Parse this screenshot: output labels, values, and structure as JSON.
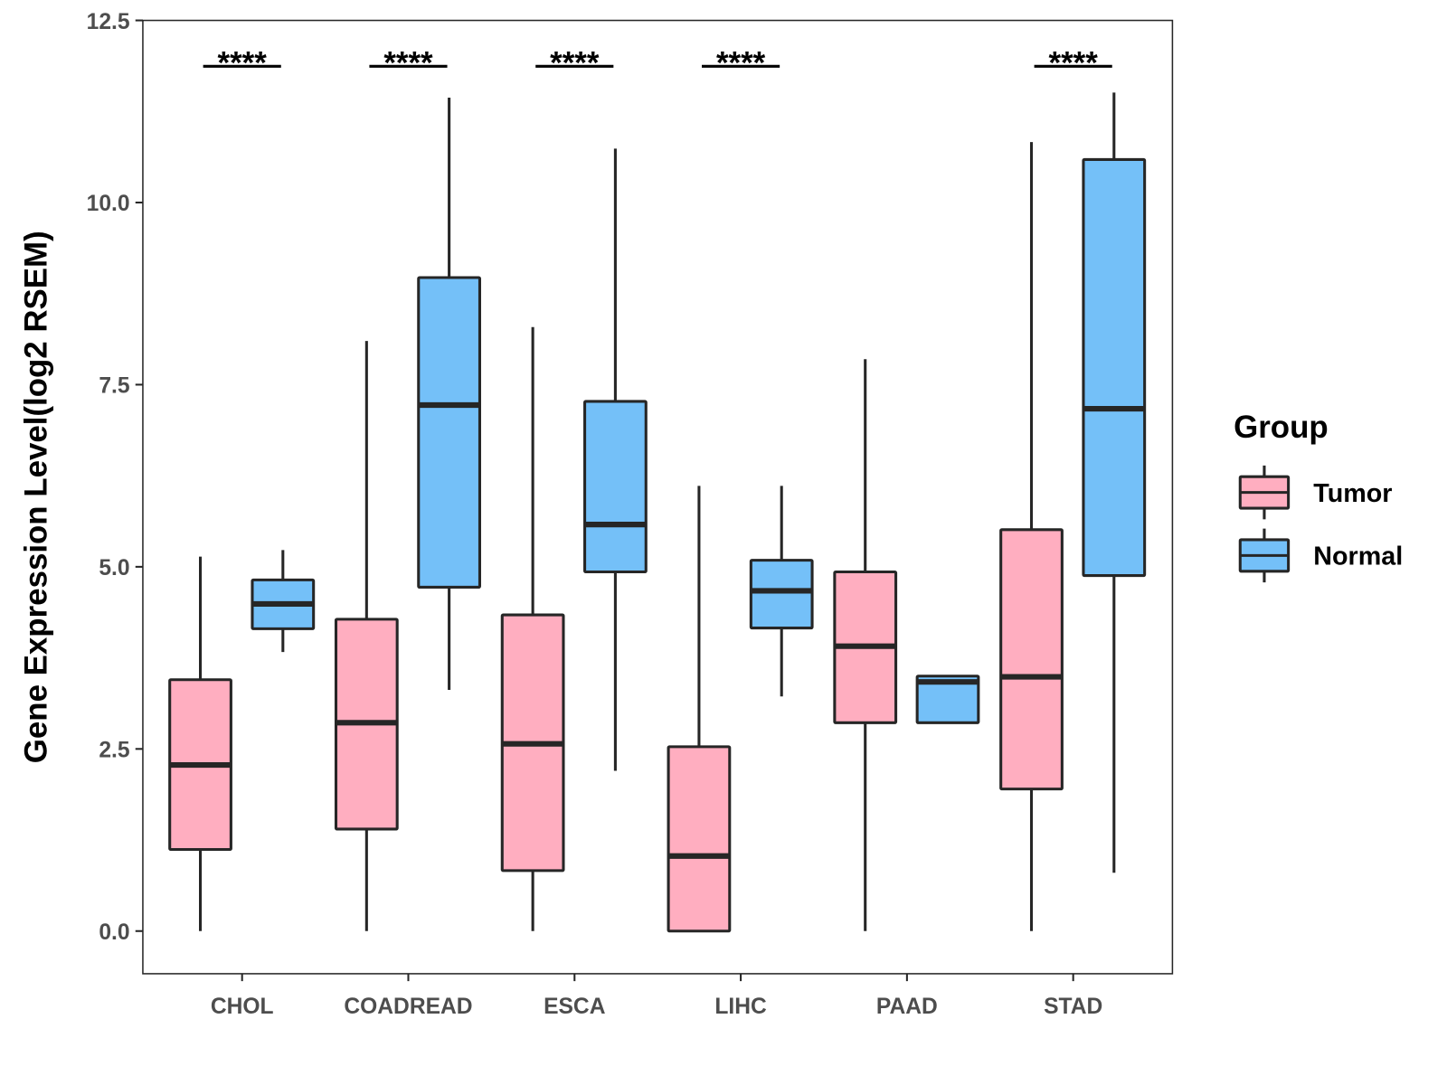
{
  "chart_data": {
    "type": "boxplot",
    "title": "",
    "xlabel": "",
    "ylabel": "Gene Expression Level(log2 RSEM)",
    "ylim": [
      -0.6,
      12.5
    ],
    "yticks": [
      "0.0",
      "2.5",
      "5.0",
      "7.5",
      "10.0",
      "12.5"
    ],
    "ytick_values": [
      0,
      2.5,
      5,
      7.5,
      10,
      12.5
    ],
    "grid": false,
    "categories": [
      "CHOL",
      "COADREAD",
      "ESCA",
      "LIHC",
      "PAAD",
      "STAD"
    ],
    "legend": {
      "title": "Group",
      "position": "right",
      "entries": [
        "Tumor",
        "Normal"
      ]
    },
    "colors": {
      "Tumor": "#FFAEC0",
      "Normal": "#74C0F8",
      "outline": "#262626"
    },
    "series": [
      {
        "name": "Tumor",
        "boxes": [
          {
            "min": 0,
            "q1": 1.12,
            "median": 2.28,
            "q3": 3.45,
            "max": 5.14
          },
          {
            "min": 0,
            "q1": 1.4,
            "median": 2.86,
            "q3": 4.28,
            "max": 8.1
          },
          {
            "min": 0,
            "q1": 0.83,
            "median": 2.57,
            "q3": 4.34,
            "max": 8.29
          },
          {
            "min": 0,
            "q1": 0.0,
            "median": 1.03,
            "q3": 2.53,
            "max": 6.11
          },
          {
            "min": 0,
            "q1": 2.86,
            "median": 3.91,
            "q3": 4.93,
            "max": 7.85
          },
          {
            "min": 0,
            "q1": 1.95,
            "median": 3.49,
            "q3": 5.51,
            "max": 10.83
          }
        ]
      },
      {
        "name": "Normal",
        "boxes": [
          {
            "min": 3.83,
            "q1": 4.15,
            "median": 4.49,
            "q3": 4.82,
            "max": 5.23
          },
          {
            "min": 3.31,
            "q1": 4.72,
            "median": 7.22,
            "q3": 8.97,
            "max": 11.44
          },
          {
            "min": 2.2,
            "q1": 4.93,
            "median": 5.58,
            "q3": 7.27,
            "max": 10.74
          },
          {
            "min": 3.22,
            "q1": 4.16,
            "median": 4.67,
            "q3": 5.09,
            "max": 6.11
          },
          {
            "min": 2.86,
            "q1": 2.86,
            "median": 3.42,
            "q3": 3.5,
            "max": 3.5
          },
          {
            "min": 0.8,
            "q1": 4.88,
            "median": 7.17,
            "q3": 10.59,
            "max": 11.51
          }
        ]
      }
    ],
    "annotations": [
      {
        "category": "CHOL",
        "label": "****"
      },
      {
        "category": "COADREAD",
        "label": "****"
      },
      {
        "category": "ESCA",
        "label": "****"
      },
      {
        "category": "LIHC",
        "label": "****"
      },
      {
        "category": "PAAD",
        "label": ""
      },
      {
        "category": "STAD",
        "label": "****"
      }
    ],
    "annotation_y": 11.87
  }
}
